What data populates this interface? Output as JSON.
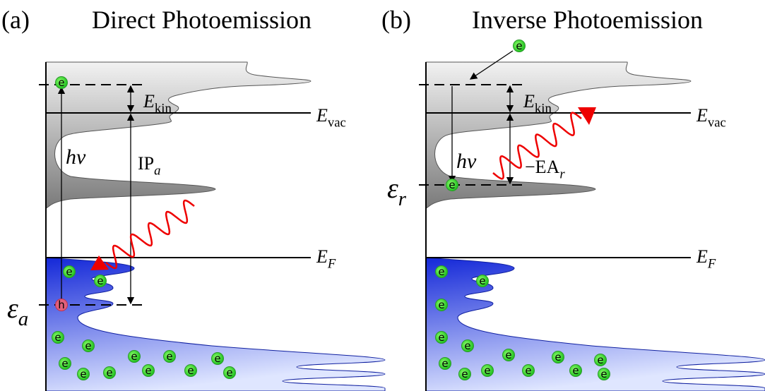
{
  "panels": [
    {
      "label": "(a)",
      "title": "Direct Photoemission",
      "kinetic": {
        "main": "E",
        "sub": "kin"
      },
      "vacuum": {
        "main": "E",
        "sub": "vac"
      },
      "photon": "hν",
      "gap": {
        "main": "IP",
        "sub": "a"
      },
      "fermi": {
        "main": "E",
        "sub": "F"
      },
      "level": {
        "main": "ε",
        "sub": "a"
      }
    },
    {
      "label": "(b)",
      "title": "Inverse Photoemission",
      "kinetic": {
        "main": "E",
        "sub": "kin"
      },
      "vacuum": {
        "main": "E",
        "sub": "vac"
      },
      "photon": "hν",
      "gap": {
        "main": "−EA",
        "sub": "r"
      },
      "fermi": {
        "main": "E",
        "sub": "F"
      },
      "level": {
        "main": "ε",
        "sub": "r"
      }
    }
  ],
  "electron_label": "e",
  "hole_label": "h"
}
